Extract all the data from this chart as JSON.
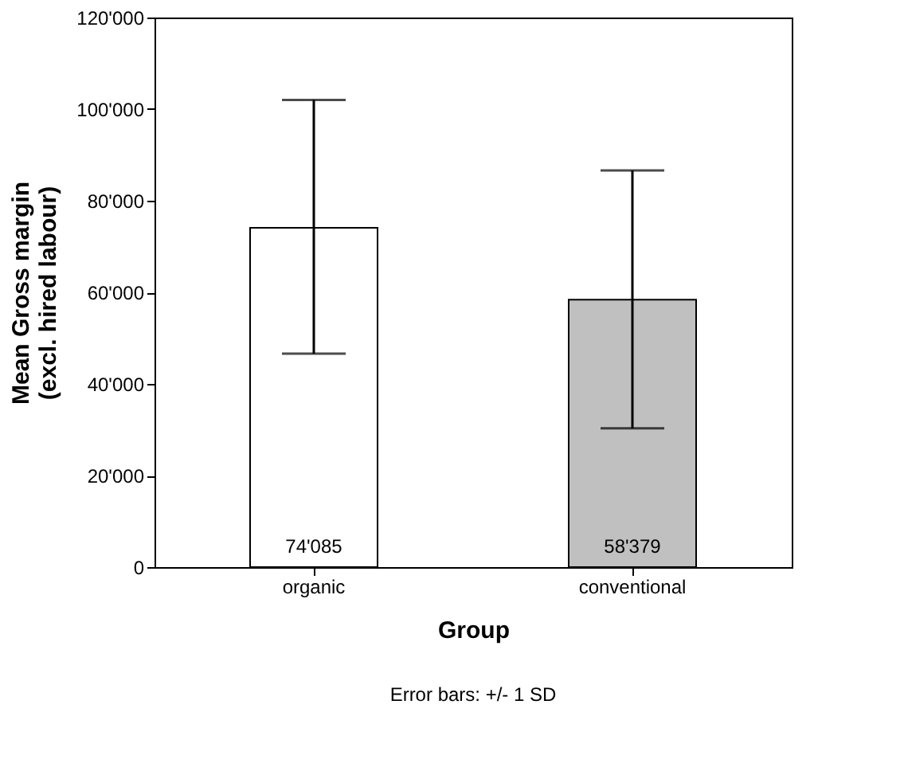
{
  "chart_data": {
    "type": "bar",
    "xlabel": "Group",
    "ylabel": "Mean Gross margin\n(excl. hired labour)",
    "categories": [
      "organic",
      "conventional"
    ],
    "values": [
      74085,
      58379
    ],
    "colors": [
      "#ffffff",
      "#c0c0c0"
    ],
    "errors": [
      [
        46600,
        102000
      ],
      [
        30300,
        86600
      ]
    ],
    "value_labels": [
      "74'085",
      "58'379"
    ],
    "ylim": [
      0,
      120000
    ],
    "yticks": [
      {
        "value": 0,
        "label": "0"
      },
      {
        "value": 20000,
        "label": "20'000"
      },
      {
        "value": 40000,
        "label": "40'000"
      },
      {
        "value": 60000,
        "label": "60'000"
      },
      {
        "value": 80000,
        "label": "80'000"
      },
      {
        "value": 100000,
        "label": "100'000"
      },
      {
        "value": 120000,
        "label": "120'000"
      }
    ],
    "grid": false,
    "annotations": [
      "Error bars: +/- 1 SD"
    ]
  }
}
